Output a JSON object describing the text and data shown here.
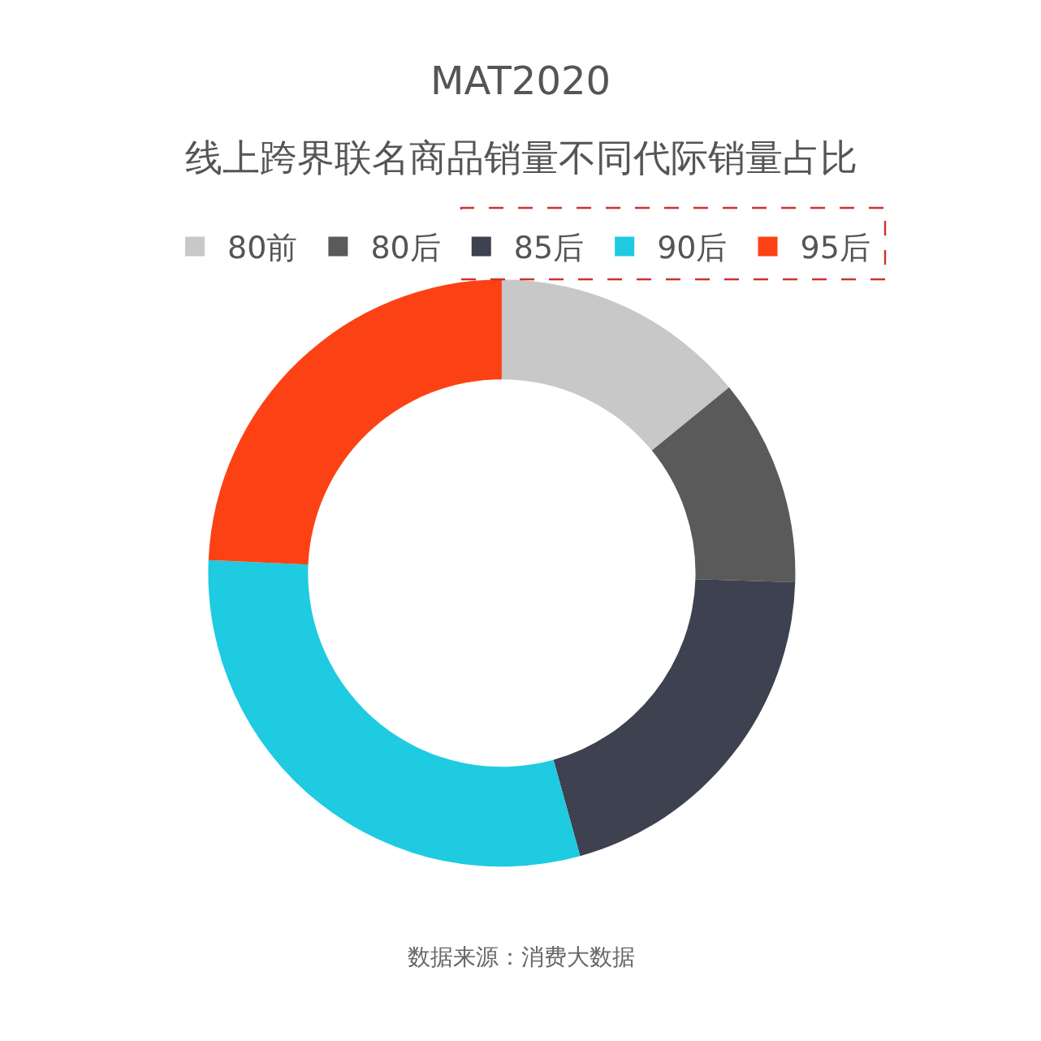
{
  "chart_data": {
    "type": "donut",
    "title": "MAT2020",
    "subtitle": "线上跨界联名商品销量不同代际销量占比",
    "categories": [
      "80前",
      "80后",
      "85后",
      "90后",
      "95后"
    ],
    "values": [
      14.1,
      11.4,
      20.2,
      30.0,
      24.3
    ],
    "colors": [
      "#c8c8c8",
      "#5a5a5a",
      "#3d4150",
      "#1ecbe1",
      "#fc4215"
    ],
    "legend": "top",
    "annotations": [
      "数据来源：消费大数据"
    ]
  }
}
